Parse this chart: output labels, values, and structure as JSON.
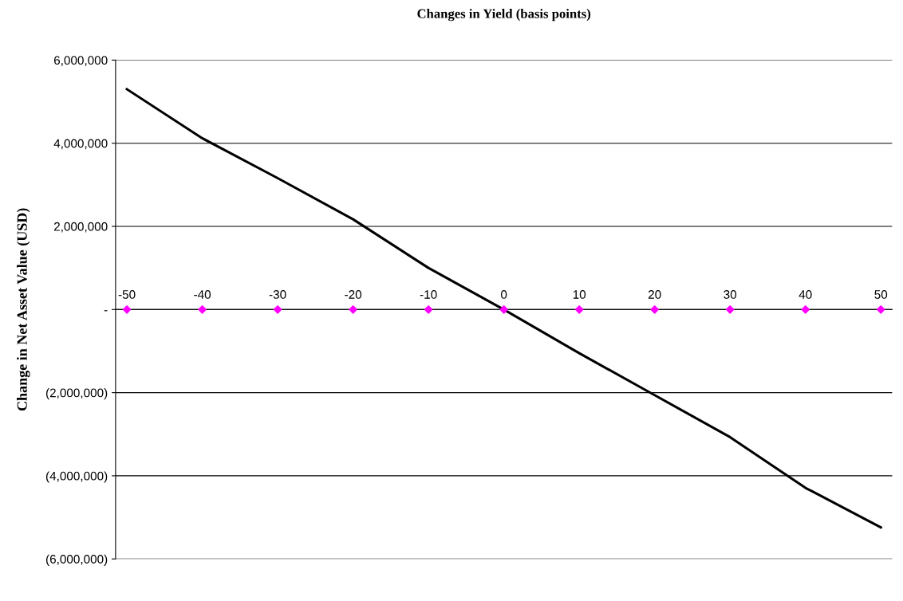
{
  "chart_data": {
    "type": "line",
    "title": "Changes in Yield (basis points)",
    "ylabel": "Change in Net Asset Value (USD)",
    "x": [
      -50,
      -40,
      -30,
      -20,
      -10,
      0,
      10,
      20,
      30,
      40,
      50
    ],
    "series": [
      {
        "color": "#000000",
        "values": [
          5300000,
          4120000,
          3160000,
          2170000,
          1000000,
          0,
          -1050000,
          -2060000,
          -3070000,
          -4290000,
          -5240000
        ],
        "marker": "none"
      },
      {
        "type": "scatter",
        "color": "#ff00ff",
        "values": [
          0,
          0,
          0,
          0,
          0,
          0,
          0,
          0,
          0,
          0,
          0
        ],
        "marker": "diamond"
      }
    ],
    "xlim": [
      -51.5,
      51.5
    ],
    "xticks": [
      -50,
      -40,
      -30,
      -20,
      -10,
      0,
      10,
      20,
      30,
      40,
      50
    ],
    "ylim": [
      -6000000,
      6000000
    ],
    "yticks": [
      {
        "value": -6000000,
        "label": "(6,000,000)"
      },
      {
        "value": -4000000,
        "label": "(4,000,000)"
      },
      {
        "value": -2000000,
        "label": "(2,000,000)"
      },
      {
        "value": 0,
        "label": "-"
      },
      {
        "value": 2000000,
        "label": "2,000,000"
      },
      {
        "value": 4000000,
        "label": "4,000,000"
      },
      {
        "value": 6000000,
        "label": "6,000,000"
      }
    ],
    "grid": "y",
    "legend": false
  }
}
